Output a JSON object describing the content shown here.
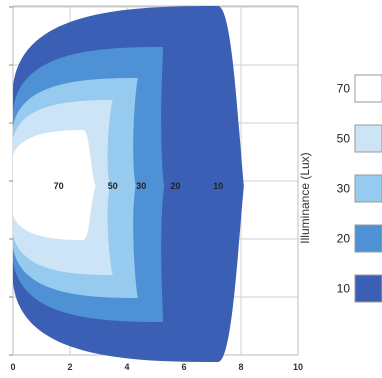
{
  "chart_data": {
    "type": "contour",
    "xlim": [
      0,
      10
    ],
    "x_ticks": [
      0,
      2,
      4,
      6,
      8,
      10
    ],
    "grid": true,
    "colorbar": {
      "title": "Illuminance (Lux)",
      "placement": "right"
    },
    "levels": [
      {
        "value": 10,
        "label": "10",
        "color": "#3a5fb5",
        "reach_x": 8.1
      },
      {
        "value": 20,
        "label": "20",
        "color": "#4e92d5",
        "reach_x": 5.3
      },
      {
        "value": 30,
        "label": "30",
        "color": "#97caef",
        "reach_x": 4.3
      },
      {
        "value": 50,
        "label": "50",
        "color": "#cde3f6",
        "reach_x": 3.4
      },
      {
        "value": 70,
        "label": "70",
        "color": "#ffffff",
        "reach_x": 2.9
      }
    ],
    "zone_labels": [
      {
        "text": "70",
        "x": 1.6
      },
      {
        "text": "50",
        "x": 3.5
      },
      {
        "text": "30",
        "x": 4.5
      },
      {
        "text": "20",
        "x": 5.7
      },
      {
        "text": "10",
        "x": 7.2
      }
    ]
  }
}
